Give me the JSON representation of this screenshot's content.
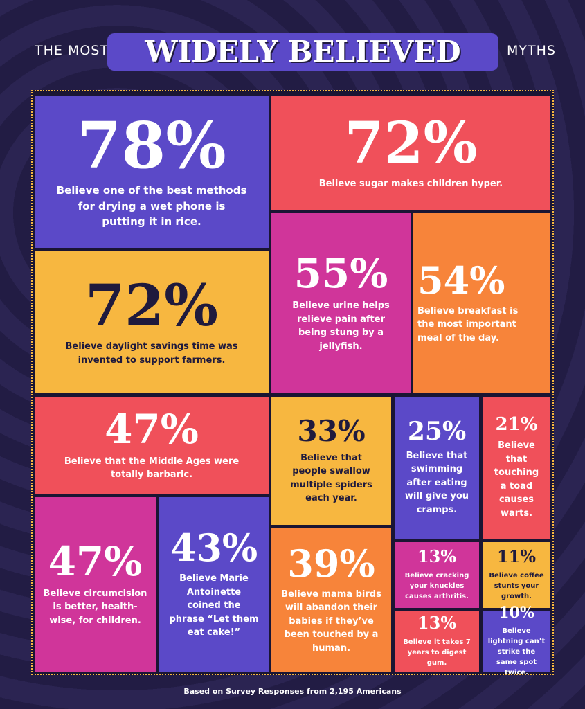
{
  "header": {
    "prefix": "THE MOST",
    "title": "WIDELY BELIEVED",
    "suffix": "MYTHS"
  },
  "tiles": [
    {
      "percent": "78%",
      "text": "Believe one of the best methods for drying a wet phone is putting it in rice."
    },
    {
      "percent": "72%",
      "text": "Believe sugar makes children hyper."
    },
    {
      "percent": "72%",
      "text": "Believe daylight savings time was invented to support farmers."
    },
    {
      "percent": "55%",
      "text": "Believe urine helps relieve pain after being stung by a jellyfish."
    },
    {
      "percent": "54%",
      "text": "Believe breakfast is the most important meal of the day."
    },
    {
      "percent": "47%",
      "text": "Believe that the Middle Ages were totally barbaric."
    },
    {
      "percent": "33%",
      "text": "Believe that people swallow multiple spiders each year."
    },
    {
      "percent": "25%",
      "text": "Believe that swimming after eating will give you cramps."
    },
    {
      "percent": "21%",
      "text": "Believe that touching a toad causes warts."
    },
    {
      "percent": "47%",
      "text": "Believe circumcision is better, health-wise, for children."
    },
    {
      "percent": "43%",
      "text": "Believe Marie Antoinette coined the phrase “Let them eat cake!”"
    },
    {
      "percent": "39%",
      "text": "Believe mama birds will abandon their babies if they’ve been touched by a human."
    },
    {
      "percent": "13%",
      "text": "Believe cracking your knuckles causes arthritis."
    },
    {
      "percent": "11%",
      "text": "Believe coffee stunts your growth."
    },
    {
      "percent": "13%",
      "text": "Believe it takes 7 years to digest gum."
    },
    {
      "percent": "10%",
      "text": "Believe lightning can’t strike the same spot twice."
    }
  ],
  "footer": "Based on Survey Responses from 2,195 Americans"
}
